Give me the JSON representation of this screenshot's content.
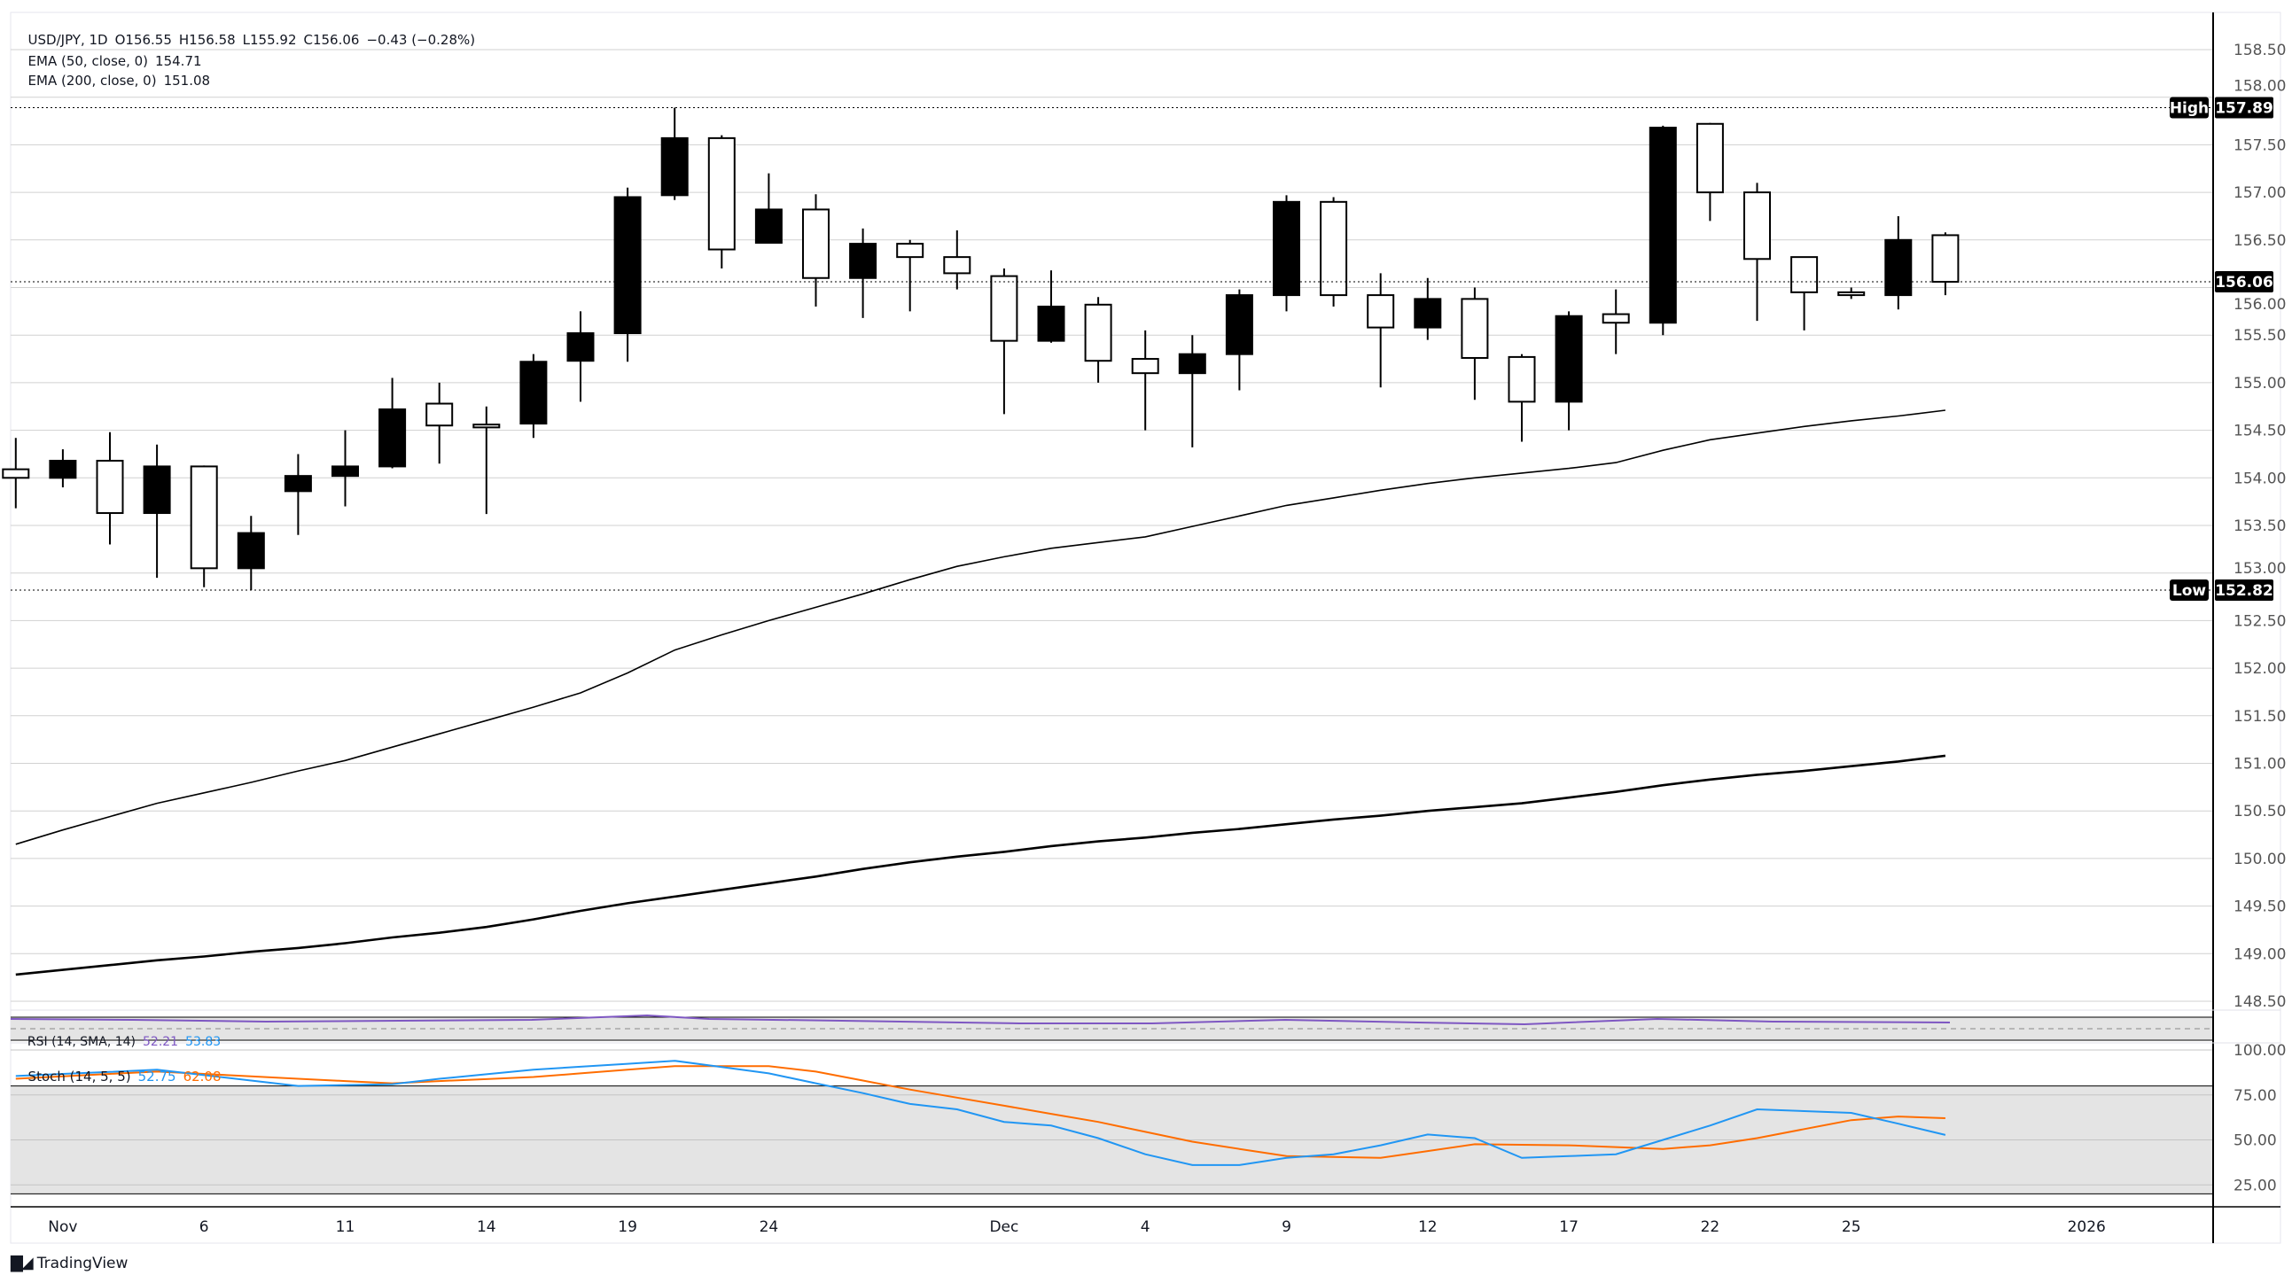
{
  "legend": {
    "symbol": "USD/JPY, 1D",
    "open": "O156.55",
    "high": "H156.58",
    "low": "L155.92",
    "close": "C156.06",
    "change": "−0.43 (−0.28%)",
    "ema50_label": "EMA (50, close, 0)",
    "ema50_value": "154.71",
    "ema200_label": "EMA (200, close, 0)",
    "ema200_value": "151.08",
    "rsi_label": "RSI (14, SMA, 14)",
    "rsi_value": "52.21",
    "rsi_sma_value": "53.83",
    "stoch_label": "Stoch (14, 5, 5)",
    "stoch_k_value": "52.75",
    "stoch_d_value": "62.08"
  },
  "markers": {
    "high_label": "High",
    "high_value": "157.89",
    "low_label": "Low",
    "low_value": "152.82",
    "last_value": "156.06"
  },
  "branding": {
    "logo_text": "TradingView"
  },
  "colors": {
    "candle": "#000000",
    "grid": "#d1d1d1",
    "stoch_k": "#2196f3",
    "stoch_d": "#ff6d00",
    "rsi": "#7e57c2",
    "band": "#e4e4e4"
  },
  "chart_data": {
    "type": "candlestick",
    "title": "USD/JPY, 1D",
    "price_axis_ticks": [
      "158.50",
      "158.00",
      "157.50",
      "157.00",
      "156.50",
      "156.00",
      "155.50",
      "155.00",
      "154.50",
      "154.00",
      "153.50",
      "153.00",
      "152.50",
      "152.00",
      "151.50",
      "151.00",
      "150.50",
      "150.00",
      "149.50",
      "149.00",
      "148.50"
    ],
    "ylim": [
      148.5,
      158.5
    ],
    "time_axis_ticks": [
      {
        "label": "Nov",
        "date": "2025-11-03"
      },
      {
        "label": "6",
        "date": "2025-11-06"
      },
      {
        "label": "11",
        "date": "2025-11-11"
      },
      {
        "label": "14",
        "date": "2025-11-14"
      },
      {
        "label": "19",
        "date": "2025-11-19"
      },
      {
        "label": "24",
        "date": "2025-11-24"
      },
      {
        "label": "Dec",
        "date": "2025-12-01"
      },
      {
        "label": "4",
        "date": "2025-12-04"
      },
      {
        "label": "9",
        "date": "2025-12-09"
      },
      {
        "label": "12",
        "date": "2025-12-12"
      },
      {
        "label": "17",
        "date": "2025-12-17"
      },
      {
        "label": "22",
        "date": "2025-12-22"
      },
      {
        "label": "25",
        "date": "2025-12-25"
      },
      {
        "label": "2026",
        "date": "2026-01-01"
      }
    ],
    "dates": [
      "2025-10-31",
      "2025-11-03",
      "2025-11-04",
      "2025-11-05",
      "2025-11-06",
      "2025-11-07",
      "2025-11-10",
      "2025-11-11",
      "2025-11-12",
      "2025-11-13",
      "2025-11-14",
      "2025-11-17",
      "2025-11-18",
      "2025-11-19",
      "2025-11-20",
      "2025-11-21",
      "2025-11-24",
      "2025-11-25",
      "2025-11-26",
      "2025-11-27",
      "2025-11-28",
      "2025-12-01",
      "2025-12-02",
      "2025-12-03",
      "2025-12-04",
      "2025-12-05",
      "2025-12-08",
      "2025-12-09",
      "2025-12-10",
      "2025-12-11",
      "2025-12-12",
      "2025-12-15",
      "2025-12-16",
      "2025-12-17",
      "2025-12-18",
      "2025-12-19",
      "2025-12-22",
      "2025-12-23",
      "2025-12-24",
      "2025-12-25",
      "2025-12-26",
      "2025-12-29"
    ],
    "ohlc": [
      [
        154.09,
        154.42,
        153.68,
        154.0
      ],
      [
        154.0,
        154.3,
        153.9,
        154.18
      ],
      [
        154.18,
        154.48,
        153.3,
        153.63
      ],
      [
        153.63,
        154.35,
        152.95,
        154.12
      ],
      [
        154.12,
        154.13,
        152.85,
        153.05
      ],
      [
        153.05,
        153.6,
        152.82,
        153.42
      ],
      [
        153.86,
        154.25,
        153.4,
        154.02
      ],
      [
        154.02,
        154.5,
        153.7,
        154.12
      ],
      [
        154.12,
        155.05,
        154.1,
        154.72
      ],
      [
        154.78,
        155.0,
        154.15,
        154.55
      ],
      [
        154.56,
        154.75,
        153.62,
        154.53
      ],
      [
        154.57,
        155.3,
        154.42,
        155.22
      ],
      [
        155.23,
        155.75,
        154.8,
        155.52
      ],
      [
        155.52,
        157.05,
        155.22,
        156.95
      ],
      [
        156.97,
        157.89,
        156.92,
        157.57
      ],
      [
        157.57,
        157.6,
        156.2,
        156.4
      ],
      [
        156.47,
        157.2,
        156.47,
        156.82
      ],
      [
        156.82,
        156.98,
        155.8,
        156.1
      ],
      [
        156.1,
        156.62,
        155.68,
        156.46
      ],
      [
        156.46,
        156.5,
        155.75,
        156.32
      ],
      [
        156.32,
        156.6,
        155.98,
        156.15
      ],
      [
        156.12,
        156.2,
        154.67,
        155.44
      ],
      [
        155.44,
        156.18,
        155.42,
        155.8
      ],
      [
        155.82,
        155.9,
        155.0,
        155.23
      ],
      [
        155.25,
        155.55,
        154.5,
        155.1
      ],
      [
        155.1,
        155.5,
        154.32,
        155.3
      ],
      [
        155.3,
        155.98,
        154.92,
        155.92
      ],
      [
        155.92,
        156.97,
        155.75,
        156.9
      ],
      [
        156.9,
        156.95,
        155.8,
        155.92
      ],
      [
        155.92,
        156.15,
        154.95,
        155.58
      ],
      [
        155.58,
        156.1,
        155.45,
        155.88
      ],
      [
        155.88,
        156.0,
        154.82,
        155.26
      ],
      [
        155.27,
        155.3,
        154.38,
        154.8
      ],
      [
        154.8,
        155.75,
        154.5,
        155.7
      ],
      [
        155.72,
        155.98,
        155.3,
        155.63
      ],
      [
        155.63,
        157.7,
        155.5,
        157.68
      ],
      [
        157.72,
        157.73,
        156.7,
        157.0
      ],
      [
        157.0,
        157.1,
        155.65,
        156.3
      ],
      [
        156.32,
        156.32,
        155.55,
        155.95
      ],
      [
        155.95,
        156.0,
        155.88,
        155.92
      ],
      [
        155.92,
        156.75,
        155.77,
        156.5
      ],
      [
        156.55,
        156.58,
        155.92,
        156.06
      ]
    ],
    "ema50": [
      150.15,
      150.3,
      150.44,
      150.58,
      150.69,
      150.8,
      150.92,
      151.03,
      151.17,
      151.31,
      151.45,
      151.59,
      151.74,
      151.95,
      152.19,
      152.35,
      152.5,
      152.64,
      152.78,
      152.93,
      153.07,
      153.17,
      153.26,
      153.32,
      153.38,
      153.49,
      153.6,
      153.71,
      153.79,
      153.87,
      153.94,
      154.0,
      154.05,
      154.1,
      154.16,
      154.29,
      154.4,
      154.47,
      154.54,
      154.6,
      154.65,
      154.71
    ],
    "ema200": [
      148.78,
      148.83,
      148.88,
      148.93,
      148.97,
      149.02,
      149.06,
      149.11,
      149.17,
      149.22,
      149.28,
      149.36,
      149.45,
      149.53,
      149.6,
      149.67,
      149.74,
      149.81,
      149.89,
      149.96,
      150.02,
      150.07,
      150.13,
      150.18,
      150.22,
      150.27,
      150.31,
      150.36,
      150.41,
      150.45,
      150.5,
      150.54,
      150.58,
      150.64,
      150.7,
      150.77,
      150.83,
      150.88,
      150.92,
      150.97,
      151.02,
      151.08
    ],
    "stoch": {
      "axis_ticks": [
        "100.00",
        "75.00",
        "50.00",
        "25.00"
      ],
      "ylim": [
        0,
        100
      ],
      "band": [
        20,
        80
      ],
      "k": [
        85.5,
        86.7,
        87.8,
        89,
        86,
        83,
        80,
        80.5,
        81,
        84,
        86.5,
        89,
        90.7,
        92.3,
        94,
        90.5,
        87,
        81.5,
        76,
        70,
        67,
        60,
        58,
        51,
        42,
        36,
        36,
        40,
        42,
        47,
        53,
        51,
        40,
        41,
        42,
        50,
        58,
        67,
        66,
        65,
        59,
        52.75
      ],
      "d": [
        84,
        85.3,
        86.7,
        88,
        86.7,
        85.3,
        84,
        82.7,
        81.5,
        82.7,
        83.8,
        85,
        87,
        89,
        91,
        91,
        91,
        88,
        83,
        78,
        73.5,
        69,
        64.5,
        60,
        54.5,
        49,
        45,
        41,
        40.5,
        40,
        43.8,
        47.6,
        47.3,
        47,
        46,
        45,
        47,
        51,
        56,
        61,
        63,
        62.08
      ]
    }
  }
}
